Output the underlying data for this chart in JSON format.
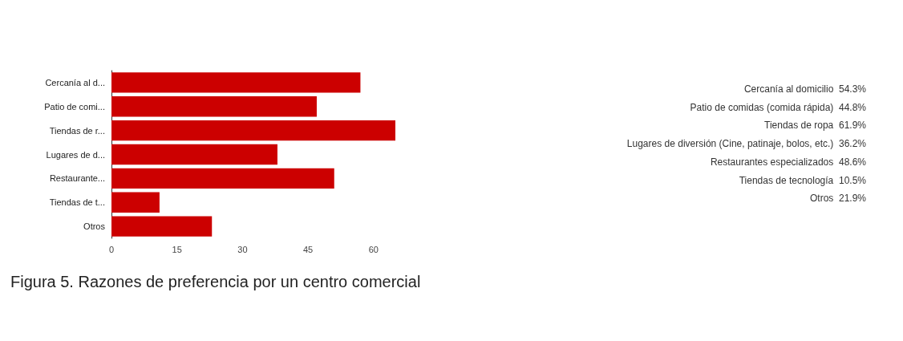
{
  "chart_data": {
    "type": "bar",
    "orientation": "horizontal",
    "title": "Figura 5. Razones de preferencia por un centro comercial",
    "categories": [
      "Cercanía al d...",
      "Patio de comi...",
      "Tiendas de r...",
      "Lugares de d...",
      "Restaurante...",
      "Tiendas de t...",
      "Otros"
    ],
    "values": [
      57,
      47,
      65,
      38,
      51,
      11,
      23
    ],
    "color": "#cc0000",
    "xlim": [
      0,
      65
    ],
    "xticks": [
      0,
      15,
      30,
      45,
      60
    ],
    "grid": false,
    "annotations": [
      "Cercanía al domicilio  54.3%",
      "Patio de comidas (comida rápida)  44.8%",
      "Tiendas de ropa  61.9%",
      "Lugares de diversión (Cine, patinaje, bolos, etc.)  36.2%",
      "Restaurantes especializados  48.6%",
      "Tiendas de tecnología  10.5%",
      "Otros  21.9%"
    ]
  }
}
